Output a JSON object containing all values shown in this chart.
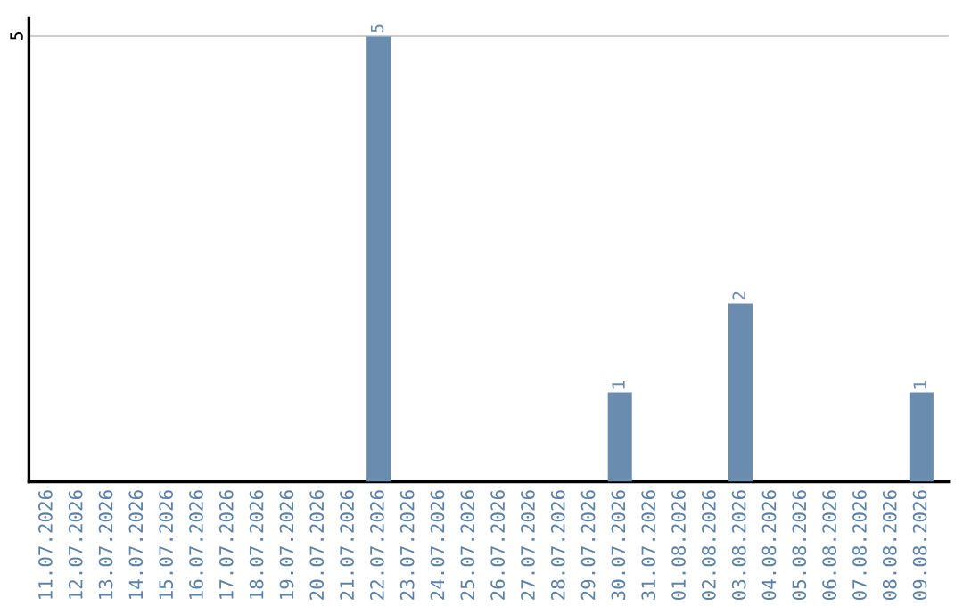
{
  "chart_data": {
    "type": "bar",
    "categories": [
      "11.07.2026",
      "12.07.2026",
      "13.07.2026",
      "14.07.2026",
      "15.07.2026",
      "16.07.2026",
      "17.07.2026",
      "18.07.2026",
      "19.07.2026",
      "20.07.2026",
      "21.07.2026",
      "22.07.2026",
      "23.07.2026",
      "24.07.2026",
      "25.07.2026",
      "26.07.2026",
      "27.07.2026",
      "28.07.2026",
      "29.07.2026",
      "30.07.2026",
      "31.07.2026",
      "01.08.2026",
      "02.08.2026",
      "03.08.2026",
      "04.08.2026",
      "05.08.2026",
      "06.08.2026",
      "07.08.2026",
      "08.08.2026",
      "09.08.2026"
    ],
    "values": [
      0,
      0,
      0,
      0,
      0,
      0,
      0,
      0,
      0,
      0,
      0,
      5,
      0,
      0,
      0,
      0,
      0,
      0,
      0,
      1,
      0,
      0,
      0,
      2,
      0,
      0,
      0,
      0,
      0,
      1
    ],
    "value_labels": [
      null,
      null,
      null,
      null,
      null,
      null,
      null,
      null,
      null,
      null,
      null,
      "5",
      null,
      null,
      null,
      null,
      null,
      null,
      null,
      "1",
      null,
      null,
      null,
      "2",
      null,
      null,
      null,
      null,
      null,
      "1"
    ],
    "color": "#6a8caf",
    "ylim": [
      0,
      5.2
    ],
    "yticks": [
      5
    ],
    "grid": "y",
    "legend": false
  }
}
